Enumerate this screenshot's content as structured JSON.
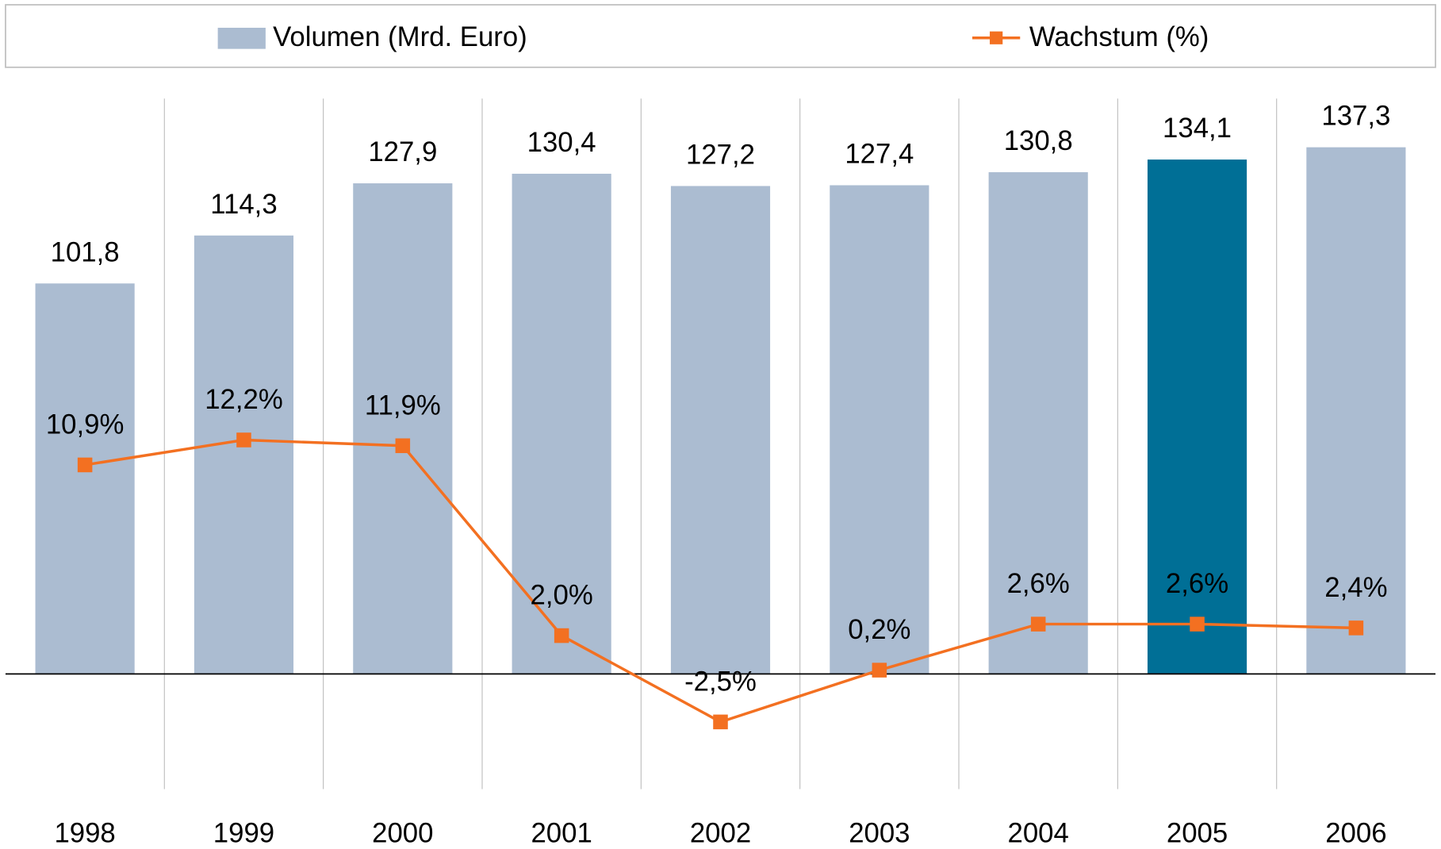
{
  "chart_data": {
    "type": "bar_line",
    "categories": [
      "1998",
      "1999",
      "2000",
      "2001",
      "2002",
      "2003",
      "2004",
      "2005",
      "2006"
    ],
    "series": [
      {
        "name": "Volumen (Mrd. Euro)",
        "type": "bar",
        "color": "#abbcd1",
        "colors": [
          "#abbcd1",
          "#abbcd1",
          "#abbcd1",
          "#abbcd1",
          "#abbcd1",
          "#abbcd1",
          "#abbcd1",
          "#006f96",
          "#abbcd1"
        ],
        "values": [
          101.8,
          114.3,
          127.9,
          130.4,
          127.2,
          127.4,
          130.8,
          134.1,
          137.3
        ],
        "value_labels": [
          "101,8",
          "114,3",
          "127,9",
          "130,4",
          "127,2",
          "127,4",
          "130,8",
          "134,1",
          "137,3"
        ]
      },
      {
        "name": "Wachstum (%)",
        "type": "line",
        "axis": "y2",
        "color": "#f37021",
        "values": [
          10.9,
          12.2,
          11.9,
          2.0,
          -2.5,
          0.2,
          2.6,
          2.6,
          2.4
        ],
        "value_labels": [
          "10,9%",
          "12,2%",
          "11,9%",
          "2,0%",
          "-2,5%",
          "0,2%",
          "2,6%",
          "2,6%",
          "2,4%"
        ]
      }
    ],
    "ylim": [
      -30,
      150
    ],
    "y2lim": [
      -6,
      30
    ]
  }
}
